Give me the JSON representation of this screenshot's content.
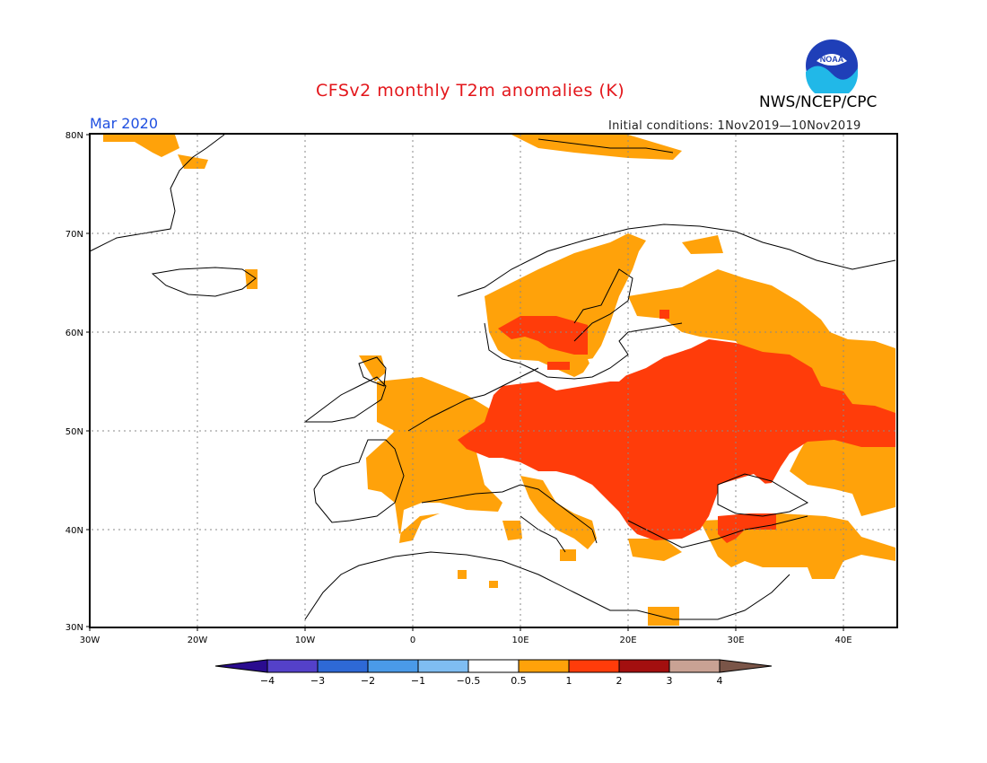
{
  "header": {
    "title": "CFSv2 monthly T2m anomalies (K)",
    "organization": "NWS/NCEP/CPC",
    "logo_text": "NOAA",
    "target_month": "Mar 2020",
    "initial_conditions": "Initial conditions: 1Nov2019—10Nov2019"
  },
  "map": {
    "region": "Europe",
    "lon_range": [
      -30,
      45
    ],
    "lat_range": [
      30,
      80
    ],
    "lat_ticks": [
      "30N",
      "40N",
      "50N",
      "60N",
      "70N",
      "80N"
    ],
    "lon_ticks": [
      "30W",
      "20W",
      "10W",
      "0",
      "10E",
      "20E",
      "30E",
      "40E"
    ],
    "gridlines": true
  },
  "colorbar": {
    "tick_labels": [
      "−4",
      "−3",
      "−2",
      "−1",
      "−0.5",
      "0.5",
      "1",
      "2",
      "3",
      "4"
    ],
    "bins": [
      {
        "range": "< -4",
        "color": "#2a0c8f"
      },
      {
        "range": "-4 to -3",
        "color": "#5441c9"
      },
      {
        "range": "-3 to -2",
        "color": "#2e69d6"
      },
      {
        "range": "-2 to -1",
        "color": "#4a9ae8"
      },
      {
        "range": "-1 to -0.5",
        "color": "#7fbdf2"
      },
      {
        "range": "-0.5 to 0.5",
        "color": "#ffffff"
      },
      {
        "range": "0.5 to 1",
        "color": "#ffa20a"
      },
      {
        "range": "1 to 2",
        "color": "#ff3c0a"
      },
      {
        "range": "2 to 3",
        "color": "#a30f0f"
      },
      {
        "range": "3 to 4",
        "color": "#c9a294"
      },
      {
        "range": "> 4",
        "color": "#7a5548"
      }
    ]
  },
  "colors": {
    "title": "#e3161b",
    "month": "#1f4fe0",
    "anomaly_0_5_to_1": "#ffa20a",
    "anomaly_1_to_2": "#ff3c0a"
  }
}
